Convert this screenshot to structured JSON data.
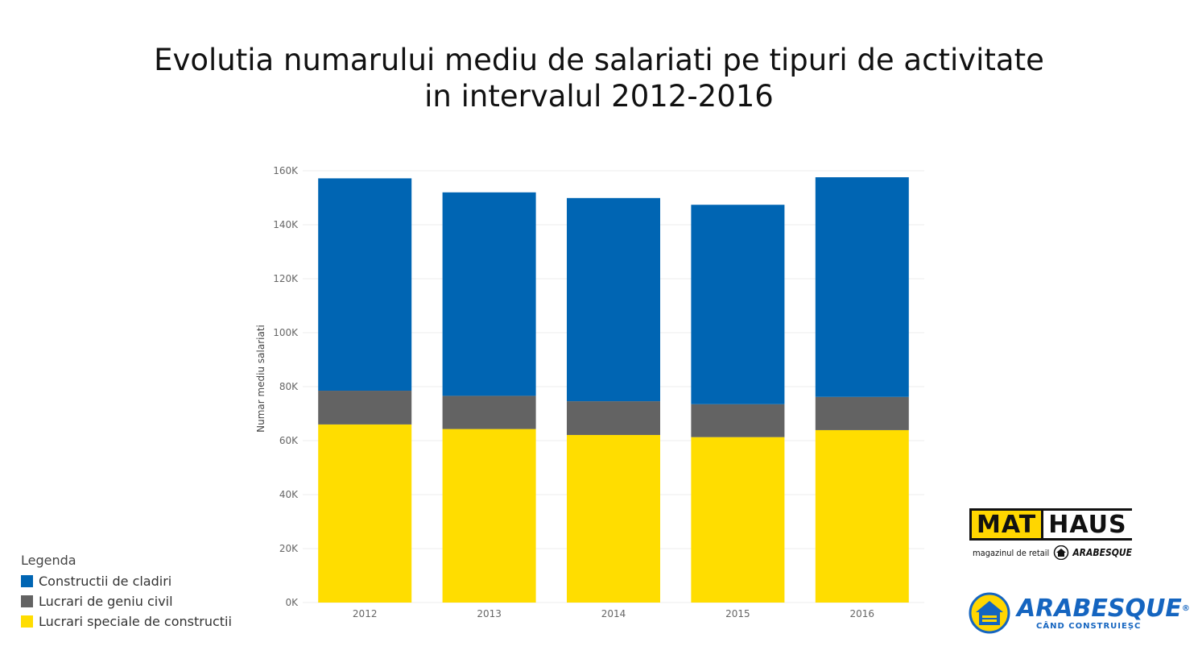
{
  "title": {
    "line1": "Evolutia numarului mediu de salariati pe tipuri de activitate",
    "line2": "in intervalul 2012-2016"
  },
  "chart_data": {
    "type": "bar",
    "stacked": true,
    "categories": [
      "2012",
      "2013",
      "2014",
      "2015",
      "2016"
    ],
    "series": [
      {
        "name": "Lucrari speciale de constructii",
        "color": "#ffdd00",
        "values": [
          66000,
          64300,
          62100,
          61300,
          63900
        ]
      },
      {
        "name": "Lucrari de geniu civil",
        "color": "#636363",
        "values": [
          12500,
          12300,
          12500,
          12200,
          12300
        ]
      },
      {
        "name": "Constructii de cladiri",
        "color": "#0065b3",
        "values": [
          78700,
          75400,
          75300,
          73900,
          81400
        ]
      }
    ],
    "ylabel": "Numar mediu salariati",
    "ylim": [
      0,
      160000
    ],
    "yticks": [
      "0K",
      "20K",
      "40K",
      "60K",
      "80K",
      "100K",
      "120K",
      "140K",
      "160K"
    ],
    "grid": true
  },
  "legend": {
    "title": "Legenda",
    "items": [
      {
        "label": "Constructii de cladiri",
        "color": "#0065b3"
      },
      {
        "label": "Lucrari de geniu civil",
        "color": "#636363"
      },
      {
        "label": "Lucrari speciale de constructii",
        "color": "#ffdd00"
      }
    ]
  },
  "logos": {
    "mathaus_mat": "MAT",
    "mathaus_haus": "HAUS",
    "mathaus_sub": "magazinul de retail",
    "mathaus_brand": "ARABESQUE",
    "arabesque_name": "ARABESQUE",
    "arabesque_tagline": "CÂND CONSTRUIEȘC"
  }
}
